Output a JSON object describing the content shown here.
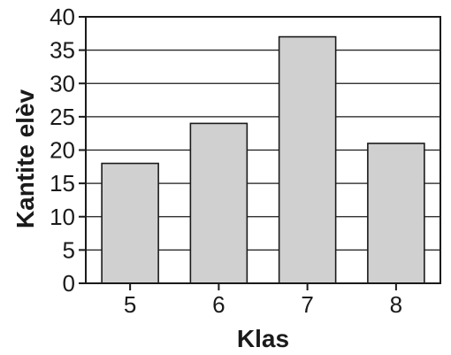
{
  "chart_data": {
    "type": "bar",
    "categories": [
      "5",
      "6",
      "7",
      "8"
    ],
    "values": [
      18,
      24,
      37,
      21
    ],
    "xlabel": "Klas",
    "ylabel": "Kantite elèv",
    "ylim": [
      0,
      40
    ],
    "yticks": [
      0,
      5,
      10,
      15,
      20,
      25,
      30,
      35,
      40
    ],
    "grid": true,
    "legend": "none",
    "colors": {
      "bar_fill": "#d0d0d0",
      "bar_stroke": "#1a1a1a",
      "grid": "#1a1a1a",
      "axis": "#1a1a1a"
    }
  }
}
